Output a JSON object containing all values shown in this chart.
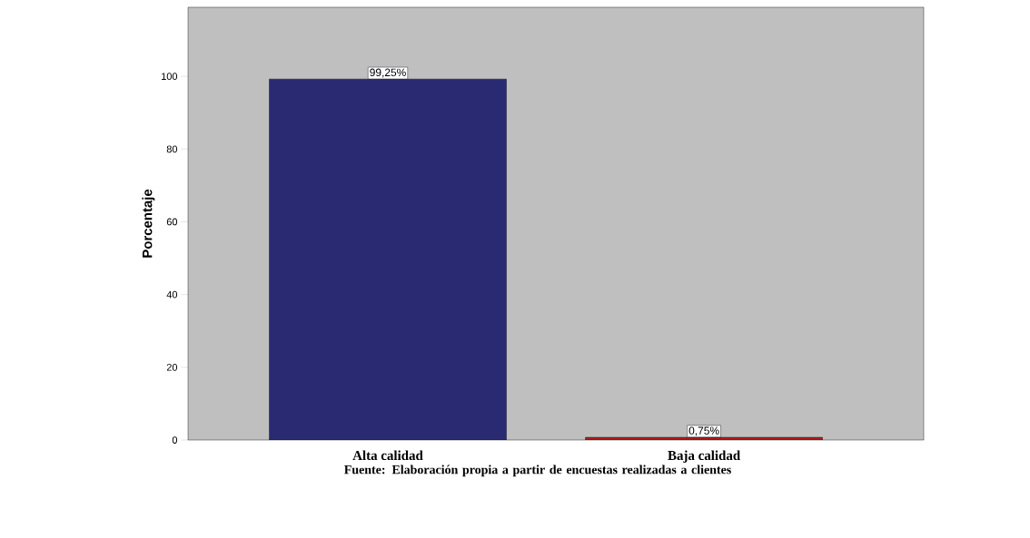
{
  "chart_data": {
    "type": "bar",
    "ylabel": "Porcentaje",
    "categories": [
      "Alta calidad",
      "Baja calidad"
    ],
    "values": [
      99.25,
      0.75
    ],
    "colors": [
      "#2a2a72",
      "#b01c1c"
    ],
    "value_labels": [
      "99,25%",
      "0,75%"
    ],
    "ylim": [
      0,
      119
    ],
    "yticks": [
      0,
      20,
      40,
      60,
      80,
      100
    ],
    "annotations": [
      "Fuente: Elaboración propia a partir de encuestas realizadas a clientes"
    ]
  }
}
